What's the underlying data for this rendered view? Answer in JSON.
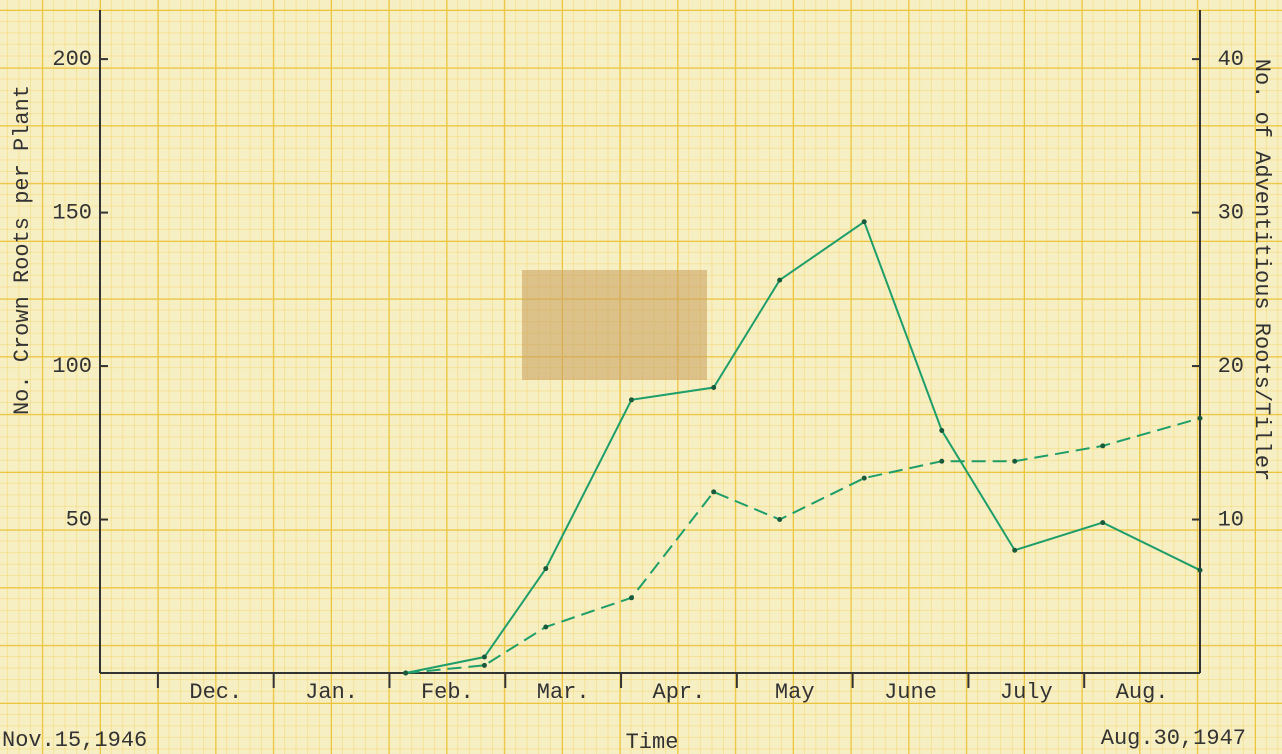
{
  "chart_data": {
    "type": "line",
    "y_label": "No. Crown Roots per Plant",
    "y2_label": "No. of Adventitious Roots/Tiller",
    "x_label": "Time",
    "start_label": "Nov.15,1946",
    "end_label": "Aug.30,1947",
    "categories": [
      "Dec.",
      "Jan.",
      "Feb.",
      "Mar.",
      "Apr.",
      "May",
      "June",
      "July",
      "Aug."
    ],
    "xlim": [
      0,
      9.5
    ],
    "x": [
      2.64,
      3.32,
      3.85,
      4.59,
      5.3,
      5.87,
      6.6,
      7.27,
      7.9,
      8.66,
      9.5
    ],
    "series": [
      {
        "name": "Crown roots",
        "color": "#1f9e6a",
        "dash": false,
        "values": [
          0,
          5.2,
          34,
          89,
          93,
          128,
          147,
          79,
          40,
          49,
          33.5
        ]
      },
      {
        "name": "Adventitious roots",
        "color": "#1f9e6a",
        "dash": true,
        "axis": "y2",
        "values": [
          0,
          0.5,
          3.0,
          4.9,
          11.8,
          10.0,
          12.7,
          13.8,
          13.8,
          14.8,
          16.6
        ]
      }
    ],
    "ylim": [
      0,
      216
    ],
    "yticks": [
      50,
      100,
      150,
      200
    ],
    "y2lim": [
      0,
      43.2
    ],
    "y2ticks": [
      10,
      20,
      30,
      40
    ]
  }
}
